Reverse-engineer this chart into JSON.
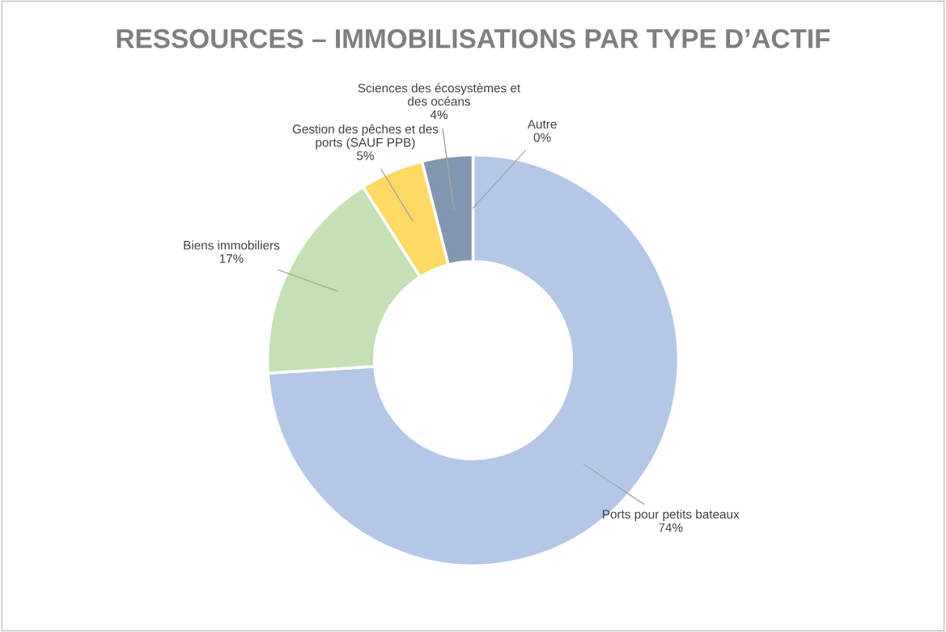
{
  "chart_data": {
    "type": "donut",
    "title": "RESSOURCES – IMMOBILISATIONS PAR TYPE D’ACTIF",
    "categories": [
      "Ports pour petits bateaux",
      "Biens immobiliers",
      "Gestion des pêches et des\nports (SAUF PPB)",
      "Sciences des écosystèmes et\ndes océans",
      "Autre"
    ],
    "values": [
      74,
      17,
      5,
      4,
      0
    ],
    "colors": [
      "#b4c7e7",
      "#c5e0b4",
      "#ffd966",
      "#8497b0",
      "#a5a5a5"
    ],
    "value_labels": [
      "74%",
      "17%",
      "5%",
      "4%",
      "0%"
    ],
    "legend": false
  }
}
